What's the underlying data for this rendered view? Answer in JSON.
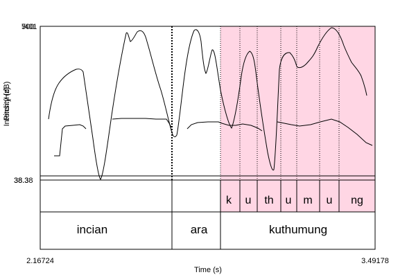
{
  "axes": {
    "y_top_a": "7",
    "y_top_b": "500",
    "y_top_c": "401",
    "y_bottom_a": "38.3",
    "y_bottom_b": "38.38",
    "y_label_a": "Intensity (dB)",
    "y_label_b": "Pitch (Hz)",
    "x_start": "2.16724",
    "x_end": "3.49178",
    "x_label": "Time (s)"
  },
  "tiers": {
    "segments": [
      "k",
      "u",
      "th",
      "u",
      "m",
      "u",
      "ng"
    ],
    "words": [
      "incian",
      "ara",
      "kuthumung"
    ]
  },
  "colors": {
    "highlight": "#ffd6e4",
    "line": "#000000"
  }
}
